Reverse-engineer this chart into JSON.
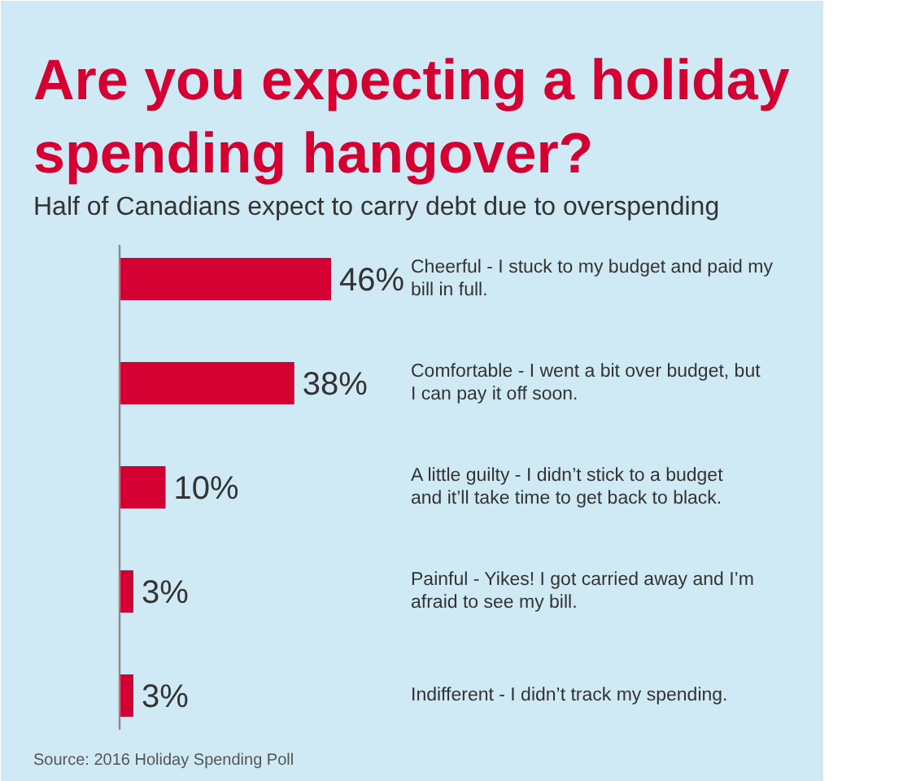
{
  "chart_data": {
    "type": "bar",
    "orientation": "horizontal",
    "title": "Are you expecting a holiday spending hangover?",
    "subtitle": "Half of Canadians expect to carry debt due to overspending",
    "categories": [
      "Cheerful - I stuck to my budget and paid my bill in full.",
      "Comfortable - I went a bit over budget, but I can pay it off soon.",
      "A little guilty - I didn’t stick to a budget and it’ll take time to get back to black.",
      "Painful - Yikes! I got carried away and I’m afraid to see my bill.",
      "Indifferent - I didn’t track my spending."
    ],
    "values": [
      46,
      38,
      10,
      3,
      3
    ],
    "value_labels": [
      "46%",
      "38%",
      "10%",
      "3%",
      "3%"
    ],
    "color": "#d50032",
    "annotations": [
      "Source: 2016 Holiday Spending Poll"
    ]
  }
}
